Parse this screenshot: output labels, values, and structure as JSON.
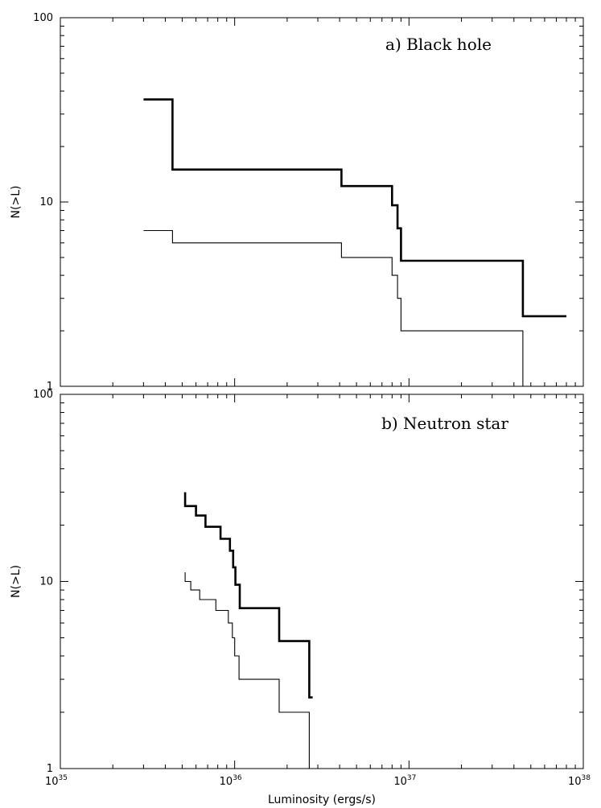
{
  "chart_data": [
    {
      "type": "line",
      "step": true,
      "title": "a) Black hole",
      "ylabel": "N(>L)",
      "xlabel": "",
      "xscale": "log",
      "yscale": "log",
      "xlim": [
        1e+35,
        1e+38
      ],
      "ylim": [
        1,
        100
      ],
      "y_tick_labels": [
        "1",
        "10",
        "100"
      ],
      "x_tick_labels": [],
      "series": [
        {
          "style": "thick",
          "points": [
            [
              3e+35,
              36
            ],
            [
              4.4e+35,
              36
            ],
            [
              4.4e+35,
              15
            ],
            [
              4.1e+36,
              15
            ],
            [
              4.1e+36,
              12.2
            ],
            [
              8e+36,
              12.2
            ],
            [
              8e+36,
              9.6
            ],
            [
              8.6e+36,
              9.6
            ],
            [
              8.6e+36,
              7.2
            ],
            [
              9e+36,
              7.2
            ],
            [
              9e+36,
              4.8
            ],
            [
              4.5e+37,
              4.8
            ],
            [
              4.5e+37,
              2.4
            ],
            [
              8e+37,
              2.4
            ]
          ]
        },
        {
          "style": "thin",
          "points": [
            [
              3e+35,
              7
            ],
            [
              4.4e+35,
              7
            ],
            [
              4.4e+35,
              6
            ],
            [
              4.1e+36,
              6
            ],
            [
              4.1e+36,
              5
            ],
            [
              8e+36,
              5
            ],
            [
              8e+36,
              4
            ],
            [
              8.6e+36,
              4
            ],
            [
              8.6e+36,
              3
            ],
            [
              9e+36,
              3
            ],
            [
              9e+36,
              2
            ],
            [
              4.5e+37,
              2
            ],
            [
              4.5e+37,
              1
            ]
          ]
        }
      ]
    },
    {
      "type": "line",
      "step": true,
      "title": "b) Neutron star",
      "ylabel": "N(>L)",
      "xlabel": "Luminosity (ergs/s)",
      "xscale": "log",
      "yscale": "log",
      "xlim": [
        1e+35,
        1e+38
      ],
      "ylim": [
        1,
        100
      ],
      "y_tick_labels": [
        "1",
        "10",
        "100"
      ],
      "x_tick_labels": [
        {
          "base": "10",
          "exp": "35"
        },
        {
          "base": "10",
          "exp": "36"
        },
        {
          "base": "10",
          "exp": "37"
        },
        {
          "base": "10",
          "exp": "38"
        }
      ],
      "series": [
        {
          "style": "thick",
          "points": [
            [
              5.2e+35,
              30
            ],
            [
              5.2e+35,
              25.3
            ],
            [
              6e+35,
              25.3
            ],
            [
              6e+35,
              22.5
            ],
            [
              6.8e+35,
              22.5
            ],
            [
              6.8e+35,
              19.6
            ],
            [
              8.3e+35,
              19.6
            ],
            [
              8.3e+35,
              16.9
            ],
            [
              9.4e+35,
              16.9
            ],
            [
              9.4e+35,
              14.6
            ],
            [
              9.8e+35,
              14.6
            ],
            [
              9.8e+35,
              11.9
            ],
            [
              1.01e+36,
              11.9
            ],
            [
              1.01e+36,
              9.6
            ],
            [
              1.07e+36,
              9.6
            ],
            [
              1.07e+36,
              7.2
            ],
            [
              1.8e+36,
              7.2
            ],
            [
              1.8e+36,
              4.8
            ],
            [
              2.68e+36,
              4.8
            ],
            [
              2.68e+36,
              2.4
            ],
            [
              2.8e+36,
              2.4
            ]
          ]
        },
        {
          "style": "thin",
          "points": [
            [
              5.2e+35,
              11.2
            ],
            [
              5.2e+35,
              10
            ],
            [
              5.6e+35,
              10
            ],
            [
              5.6e+35,
              9
            ],
            [
              6.3e+35,
              9
            ],
            [
              6.3e+35,
              8
            ],
            [
              7.8e+35,
              8
            ],
            [
              7.8e+35,
              7
            ],
            [
              9.2e+35,
              7
            ],
            [
              9.2e+35,
              6
            ],
            [
              9.7e+35,
              6
            ],
            [
              9.7e+35,
              5
            ],
            [
              1e+36,
              5
            ],
            [
              1e+36,
              4
            ],
            [
              1.06e+36,
              4
            ],
            [
              1.06e+36,
              3
            ],
            [
              1.8e+36,
              3
            ],
            [
              1.8e+36,
              2
            ],
            [
              2.68e+36,
              2
            ],
            [
              2.68e+36,
              1
            ]
          ]
        }
      ]
    }
  ]
}
